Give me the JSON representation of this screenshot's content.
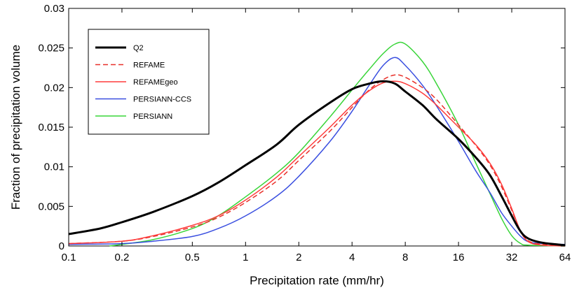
{
  "chart_data": {
    "type": "line",
    "title": "",
    "xlabel": "Precipitation rate (mm/hr)",
    "ylabel": "Fraction of precipitation volume",
    "xscale": "log2",
    "xlim": [
      0.1,
      64
    ],
    "ylim": [
      0,
      0.03
    ],
    "x_ticks": [
      0.1,
      0.2,
      0.5,
      1,
      2,
      4,
      8,
      16,
      32,
      64
    ],
    "x_tick_labels": [
      "0.1",
      "0.2",
      "0.5",
      "1",
      "2",
      "4",
      "8",
      "16",
      "32",
      "64"
    ],
    "y_ticks": [
      0,
      0.005,
      0.01,
      0.015,
      0.02,
      0.025,
      0.03
    ],
    "y_tick_labels": [
      "0",
      "0.005",
      "0.01",
      "0.015",
      "0.02",
      "0.025",
      "0.03"
    ],
    "grid": false,
    "legend_position": "top-left",
    "series": [
      {
        "name": "Q2",
        "color": "#000000",
        "dash": "solid",
        "width": 3,
        "points": [
          [
            0.1,
            0.0015
          ],
          [
            0.15,
            0.0022
          ],
          [
            0.2,
            0.003
          ],
          [
            0.3,
            0.0043
          ],
          [
            0.5,
            0.0063
          ],
          [
            0.7,
            0.008
          ],
          [
            1,
            0.0102
          ],
          [
            1.5,
            0.0128
          ],
          [
            2,
            0.0153
          ],
          [
            3,
            0.0181
          ],
          [
            4,
            0.0198
          ],
          [
            5,
            0.0205
          ],
          [
            6,
            0.0208
          ],
          [
            7,
            0.0205
          ],
          [
            8,
            0.0195
          ],
          [
            10,
            0.0178
          ],
          [
            12,
            0.016
          ],
          [
            16,
            0.0135
          ],
          [
            20,
            0.0112
          ],
          [
            24,
            0.009
          ],
          [
            28,
            0.0063
          ],
          [
            32,
            0.0038
          ],
          [
            36,
            0.0018
          ],
          [
            40,
            0.0009
          ],
          [
            48,
            0.0004
          ],
          [
            64,
            0.0001
          ]
        ]
      },
      {
        "name": "REFAME",
        "color": "#e8302a",
        "dash": "dashed",
        "width": 1.5,
        "points": [
          [
            0.1,
            0.0003
          ],
          [
            0.2,
            0.0006
          ],
          [
            0.3,
            0.0012
          ],
          [
            0.5,
            0.0024
          ],
          [
            0.7,
            0.0036
          ],
          [
            1,
            0.0055
          ],
          [
            1.5,
            0.0082
          ],
          [
            2,
            0.0108
          ],
          [
            3,
            0.0145
          ],
          [
            4,
            0.0175
          ],
          [
            5,
            0.0197
          ],
          [
            6,
            0.021
          ],
          [
            7,
            0.0216
          ],
          [
            8,
            0.0213
          ],
          [
            10,
            0.02
          ],
          [
            12,
            0.0185
          ],
          [
            16,
            0.0153
          ],
          [
            20,
            0.0127
          ],
          [
            24,
            0.0103
          ],
          [
            28,
            0.0075
          ],
          [
            32,
            0.0045
          ],
          [
            36,
            0.0018
          ],
          [
            40,
            0.0006
          ],
          [
            48,
            0.0002
          ],
          [
            64,
            0.0001
          ]
        ]
      },
      {
        "name": "REFAMEgeo",
        "color": "#ff3b3b",
        "dash": "solid",
        "width": 1.5,
        "points": [
          [
            0.1,
            0.0003
          ],
          [
            0.2,
            0.0006
          ],
          [
            0.3,
            0.0013
          ],
          [
            0.5,
            0.0026
          ],
          [
            0.7,
            0.0038
          ],
          [
            1,
            0.0058
          ],
          [
            1.5,
            0.0087
          ],
          [
            2,
            0.0113
          ],
          [
            3,
            0.015
          ],
          [
            4,
            0.0178
          ],
          [
            5,
            0.0196
          ],
          [
            6,
            0.0206
          ],
          [
            7,
            0.0208
          ],
          [
            8,
            0.0205
          ],
          [
            10,
            0.0193
          ],
          [
            12,
            0.0178
          ],
          [
            16,
            0.015
          ],
          [
            20,
            0.0128
          ],
          [
            24,
            0.0105
          ],
          [
            28,
            0.0078
          ],
          [
            32,
            0.0047
          ],
          [
            36,
            0.0018
          ],
          [
            40,
            0.0005
          ],
          [
            48,
            0.0001
          ],
          [
            64,
            0
          ]
        ]
      },
      {
        "name": "PERSIANN-CCS",
        "color": "#3a4fe0",
        "dash": "solid",
        "width": 1.5,
        "points": [
          [
            0.1,
            0.0002
          ],
          [
            0.2,
            0.0003
          ],
          [
            0.3,
            0.0006
          ],
          [
            0.5,
            0.0012
          ],
          [
            0.7,
            0.0022
          ],
          [
            1,
            0.0038
          ],
          [
            1.5,
            0.0063
          ],
          [
            2,
            0.0088
          ],
          [
            3,
            0.0132
          ],
          [
            4,
            0.017
          ],
          [
            5,
            0.0203
          ],
          [
            6,
            0.0228
          ],
          [
            7,
            0.0238
          ],
          [
            8,
            0.0228
          ],
          [
            10,
            0.0203
          ],
          [
            12,
            0.0177
          ],
          [
            16,
            0.0132
          ],
          [
            20,
            0.0095
          ],
          [
            24,
            0.0068
          ],
          [
            28,
            0.0042
          ],
          [
            32,
            0.0025
          ],
          [
            36,
            0.0012
          ],
          [
            40,
            0.0005
          ],
          [
            48,
            0.0003
          ],
          [
            64,
            0.0002
          ]
        ]
      },
      {
        "name": "PERSIANN",
        "color": "#39d539",
        "dash": "solid",
        "width": 1.5,
        "points": [
          [
            0.17,
            0
          ],
          [
            0.2,
            0.0002
          ],
          [
            0.3,
            0.0008
          ],
          [
            0.5,
            0.0022
          ],
          [
            0.7,
            0.0038
          ],
          [
            1,
            0.0062
          ],
          [
            1.5,
            0.0092
          ],
          [
            2,
            0.0118
          ],
          [
            3,
            0.0163
          ],
          [
            4,
            0.0197
          ],
          [
            5,
            0.0223
          ],
          [
            6,
            0.0243
          ],
          [
            7,
            0.0255
          ],
          [
            8,
            0.0255
          ],
          [
            10,
            0.0233
          ],
          [
            12,
            0.0205
          ],
          [
            16,
            0.0153
          ],
          [
            20,
            0.0105
          ],
          [
            24,
            0.0067
          ],
          [
            28,
            0.0035
          ],
          [
            32,
            0.0013
          ],
          [
            36,
            0.0003
          ],
          [
            40,
            0.0001
          ],
          [
            64,
            0
          ]
        ]
      }
    ]
  }
}
